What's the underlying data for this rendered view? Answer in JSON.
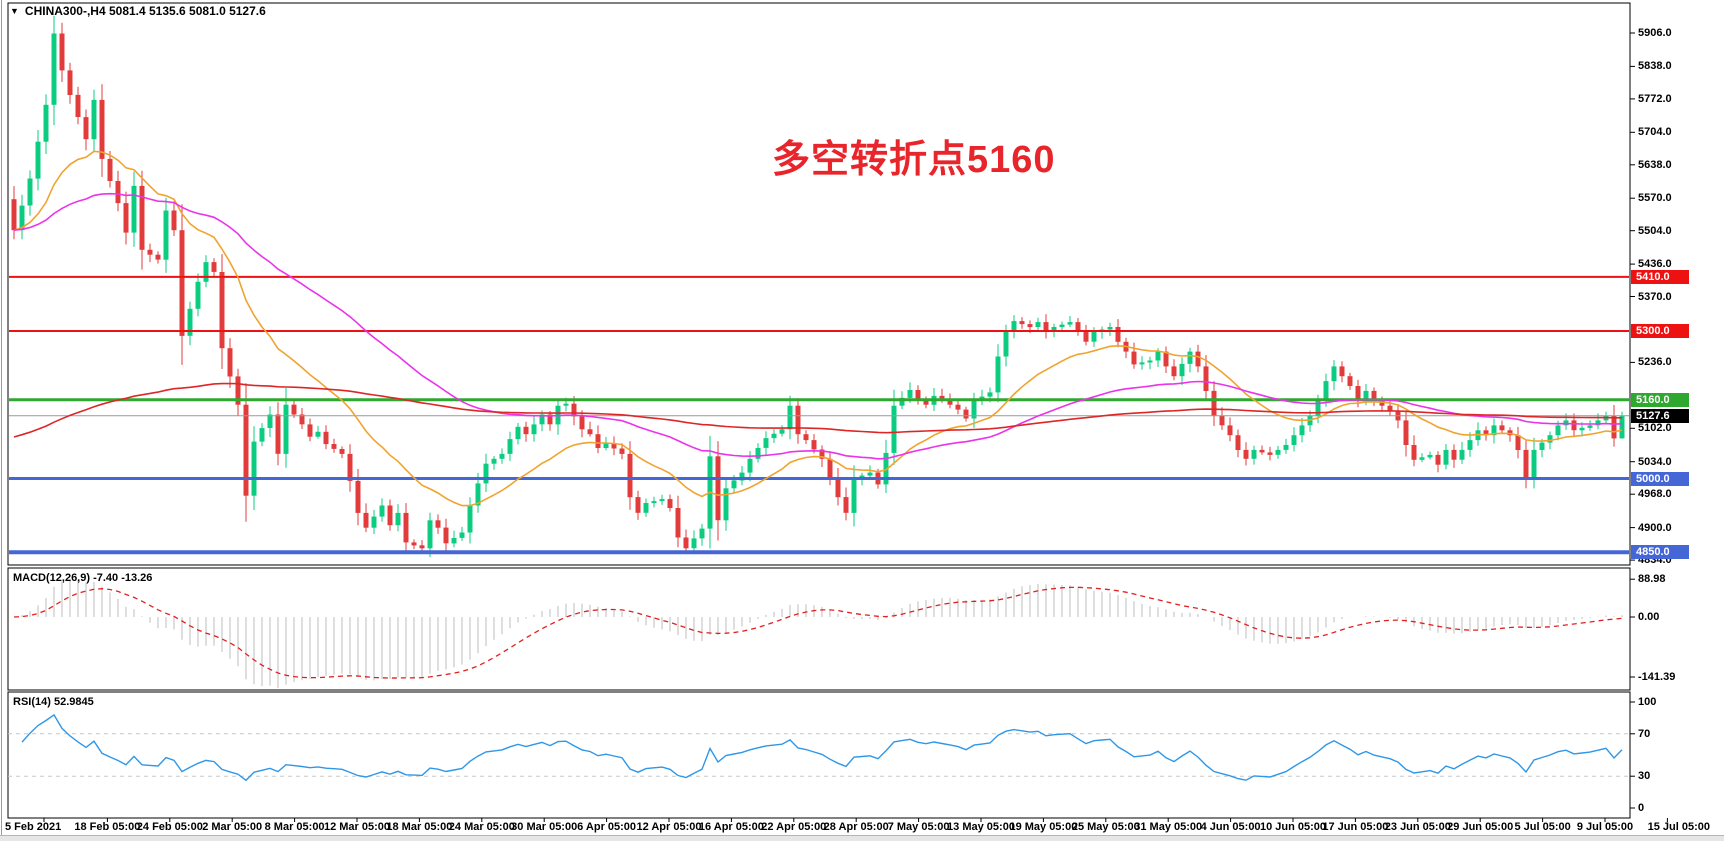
{
  "header": {
    "dropdown_icon": "▼",
    "symbol": "CHINA300-,H4",
    "quote": "5081.4 5135.6 5081.0 5127.6"
  },
  "annotation": {
    "text": "多空转折点5160",
    "color": "#e8252b"
  },
  "indicator_labels": {
    "macd_name": "MACD(12,26,9)",
    "macd_values": " -7.40 -13.26",
    "rsi_name": "RSI(14)",
    "rsi_value": " 52.9845"
  },
  "colors": {
    "candle_up": "#0ccc82",
    "candle_down": "#e23b3b",
    "pane_border": "#000000",
    "axis_text": "#000000"
  },
  "chart_data": {
    "type": "candlestick",
    "symbol": "CHINA300-,H4",
    "timeframe": "H4",
    "last_quote": {
      "open": 5081.4,
      "high": 5135.6,
      "low": 5081.0,
      "close": 5127.6
    },
    "price_axis": {
      "ticks": [
        5906.0,
        5838.0,
        5772.0,
        5704.0,
        5638.0,
        5570.0,
        5504.0,
        5436.0,
        5370.0,
        5236.0,
        5102.0,
        5034.0,
        4968.0,
        4900.0,
        4834.0
      ],
      "visible_range": [
        4824,
        5967
      ]
    },
    "horizontal_levels": [
      {
        "price": 5410.0,
        "label": "5410.0",
        "color": "#ee1111",
        "line_width": 2
      },
      {
        "price": 5300.0,
        "label": "5300.0",
        "color": "#ee1111",
        "line_width": 2
      },
      {
        "price": 5160.0,
        "label": "5160.0",
        "color": "#2fa82f",
        "line_width": 3
      },
      {
        "price": 5000.0,
        "label": "5000.0",
        "color": "#4566d6",
        "line_width": 3
      },
      {
        "price": 4850.0,
        "label": "4850.0",
        "color": "#4566d6",
        "line_width": 4
      }
    ],
    "current_price": {
      "value": 5127.6,
      "label": "5127.6",
      "line_color": "#999999",
      "label_bg": "#000000"
    },
    "candles": {
      "count": 202,
      "first_open": 5568,
      "close_anchors": [
        [
          0,
          5505
        ],
        [
          1,
          5555
        ],
        [
          2,
          5610
        ],
        [
          4,
          5760
        ],
        [
          5,
          5905
        ],
        [
          6,
          5830
        ],
        [
          7,
          5780
        ],
        [
          9,
          5690
        ],
        [
          10,
          5770
        ],
        [
          11,
          5650
        ],
        [
          13,
          5560
        ],
        [
          14,
          5500
        ],
        [
          15,
          5595
        ],
        [
          16,
          5465
        ],
        [
          18,
          5445
        ],
        [
          19,
          5545
        ],
        [
          20,
          5505
        ],
        [
          21,
          5290
        ],
        [
          23,
          5400
        ],
        [
          24,
          5440
        ],
        [
          25,
          5420
        ],
        [
          26,
          5265
        ],
        [
          28,
          5150
        ],
        [
          29,
          4965
        ],
        [
          30,
          5075
        ],
        [
          32,
          5130
        ],
        [
          33,
          5050
        ],
        [
          34,
          5150
        ],
        [
          36,
          5110
        ],
        [
          37,
          5085
        ],
        [
          38,
          5095
        ],
        [
          39,
          5070
        ],
        [
          41,
          5050
        ],
        [
          42,
          4995
        ],
        [
          43,
          4930
        ],
        [
          44,
          4900
        ],
        [
          46,
          4945
        ],
        [
          47,
          4905
        ],
        [
          48,
          4930
        ],
        [
          49,
          4870
        ],
        [
          51,
          4858
        ],
        [
          52,
          4915
        ],
        [
          53,
          4900
        ],
        [
          54,
          4868
        ],
        [
          56,
          4890
        ],
        [
          57,
          4945
        ],
        [
          58,
          4990
        ],
        [
          59,
          5030
        ],
        [
          61,
          5050
        ],
        [
          62,
          5080
        ],
        [
          63,
          5105
        ],
        [
          64,
          5090
        ],
        [
          66,
          5130
        ],
        [
          67,
          5110
        ],
        [
          68,
          5148
        ],
        [
          69,
          5152
        ],
        [
          71,
          5100
        ],
        [
          72,
          5090
        ],
        [
          73,
          5062
        ],
        [
          74,
          5072
        ],
        [
          76,
          5050
        ],
        [
          77,
          4962
        ],
        [
          78,
          4930
        ],
        [
          79,
          4950
        ],
        [
          81,
          4958
        ],
        [
          82,
          4940
        ],
        [
          83,
          4880
        ],
        [
          84,
          4858
        ],
        [
          86,
          4898
        ],
        [
          87,
          5045
        ],
        [
          88,
          4915
        ],
        [
          89,
          4980
        ],
        [
          91,
          5012
        ],
        [
          92,
          5040
        ],
        [
          93,
          5062
        ],
        [
          94,
          5082
        ],
        [
          96,
          5100
        ],
        [
          97,
          5148
        ],
        [
          98,
          5090
        ],
        [
          99,
          5078
        ],
        [
          101,
          5040
        ],
        [
          102,
          5000
        ],
        [
          103,
          4962
        ],
        [
          104,
          4930
        ],
        [
          105,
          5000
        ],
        [
          107,
          5012
        ],
        [
          108,
          4988
        ],
        [
          109,
          5052
        ],
        [
          110,
          5148
        ],
        [
          112,
          5180
        ],
        [
          113,
          5160
        ],
        [
          114,
          5150
        ],
        [
          115,
          5168
        ],
        [
          117,
          5150
        ],
        [
          118,
          5140
        ],
        [
          119,
          5122
        ],
        [
          120,
          5158
        ],
        [
          122,
          5175
        ],
        [
          123,
          5248
        ],
        [
          124,
          5298
        ],
        [
          125,
          5320
        ],
        [
          127,
          5308
        ],
        [
          128,
          5318
        ],
        [
          129,
          5298
        ],
        [
          130,
          5308
        ],
        [
          132,
          5318
        ],
        [
          133,
          5298
        ],
        [
          134,
          5278
        ],
        [
          135,
          5298
        ],
        [
          137,
          5308
        ],
        [
          138,
          5278
        ],
        [
          139,
          5258
        ],
        [
          140,
          5232
        ],
        [
          142,
          5240
        ],
        [
          143,
          5258
        ],
        [
          144,
          5228
        ],
        [
          145,
          5208
        ],
        [
          147,
          5258
        ],
        [
          148,
          5228
        ],
        [
          149,
          5178
        ],
        [
          150,
          5128
        ],
        [
          152,
          5088
        ],
        [
          153,
          5058
        ],
        [
          154,
          5040
        ],
        [
          155,
          5058
        ],
        [
          157,
          5048
        ],
        [
          158,
          5058
        ],
        [
          159,
          5068
        ],
        [
          160,
          5088
        ],
        [
          162,
          5128
        ],
        [
          163,
          5158
        ],
        [
          164,
          5198
        ],
        [
          165,
          5228
        ],
        [
          167,
          5188
        ],
        [
          168,
          5158
        ],
        [
          169,
          5178
        ],
        [
          170,
          5158
        ],
        [
          172,
          5138
        ],
        [
          173,
          5118
        ],
        [
          174,
          5068
        ],
        [
          175,
          5038
        ],
        [
          177,
          5048
        ],
        [
          178,
          5028
        ],
        [
          179,
          5058
        ],
        [
          180,
          5038
        ],
        [
          182,
          5078
        ],
        [
          183,
          5098
        ],
        [
          184,
          5088
        ],
        [
          185,
          5108
        ],
        [
          187,
          5088
        ],
        [
          188,
          5058
        ],
        [
          189,
          4998
        ],
        [
          190,
          5058
        ],
        [
          192,
          5088
        ],
        [
          193,
          5108
        ],
        [
          194,
          5118
        ],
        [
          195,
          5098
        ],
        [
          197,
          5108
        ],
        [
          198,
          5118
        ],
        [
          199,
          5128
        ],
        [
          200,
          5081.4
        ],
        [
          201,
          5127.6
        ]
      ]
    },
    "moving_averages": [
      {
        "name": "ma-fast",
        "period": 18,
        "seed": 5505,
        "color": "#f0a32e"
      },
      {
        "name": "ma-mid",
        "period": 55,
        "seed": 5505,
        "color": "#ea33ea"
      },
      {
        "name": "ma-slow",
        "period": 200,
        "seed": 5080,
        "color": "#dd2727"
      }
    ],
    "macd": {
      "params": "12,26,9",
      "current_values": [
        -7.4,
        -13.26
      ],
      "axis_ticks": [
        {
          "v": 88.98,
          "label": "88.98"
        },
        {
          "v": 0,
          "label": "0.00"
        },
        {
          "v": -141.39,
          "label": "-141.39"
        }
      ],
      "display_min": -167,
      "histogram_color": "#c8c8c8",
      "signal_color": "#e02020"
    },
    "rsi": {
      "period": 14,
      "current_value": 52.9845,
      "axis_ticks": [
        {
          "v": 100,
          "label": "100"
        },
        {
          "v": 70,
          "label": "70"
        },
        {
          "v": 30,
          "label": "30"
        },
        {
          "v": 0,
          "label": "0"
        }
      ],
      "levels": [
        70,
        30
      ],
      "line_color": "#2e97e8",
      "level_color": "#c8c8c8"
    },
    "time_axis": {
      "labels": [
        "5 Feb 2021",
        "18 Feb 05:00",
        "24 Feb 05:00",
        "2 Mar 05:00",
        "8 Mar 05:00",
        "12 Mar 05:00",
        "18 Mar 05:00",
        "24 Mar 05:00",
        "30 Mar 05:00",
        "6 Apr 05:00",
        "12 Apr 05:00",
        "16 Apr 05:00",
        "22 Apr 05:00",
        "28 Apr 05:00",
        "7 May 05:00",
        "13 May 05:00",
        "19 May 05:00",
        "25 May 05:00",
        "31 May 05:00",
        "4 Jun 05:00",
        "10 Jun 05:00",
        "17 Jun 05:00",
        "23 Jun 05:00",
        "29 Jun 05:00",
        "5 Jul 05:00",
        "9 Jul 05:00",
        "15 Jul 05:00"
      ]
    }
  }
}
